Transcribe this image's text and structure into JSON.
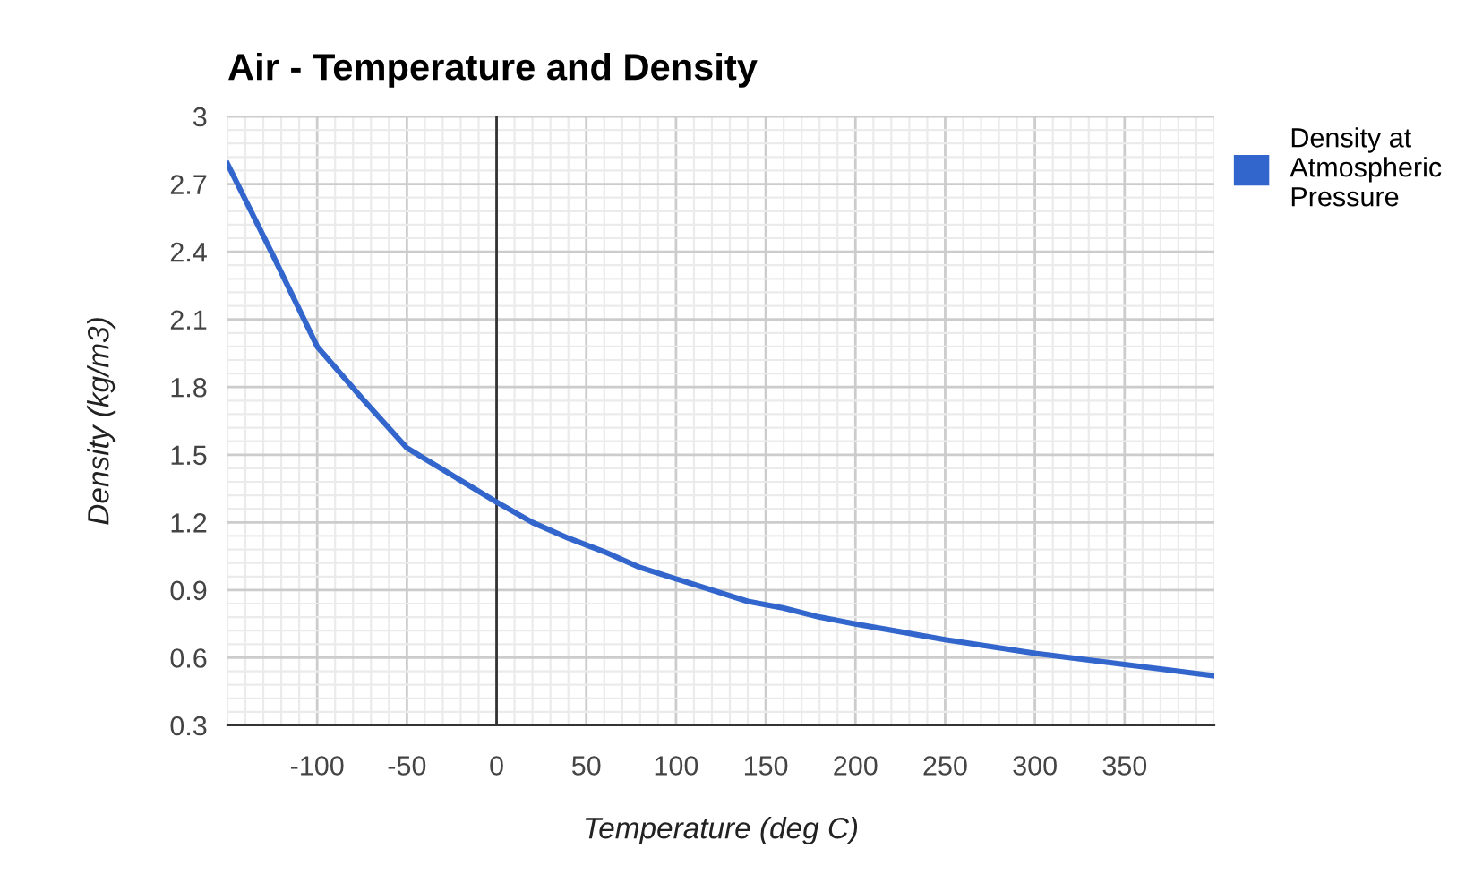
{
  "chart_data": {
    "type": "line",
    "title": "Air - Temperature and Density",
    "xlabel": "Temperature (deg C)",
    "ylabel": "Density (kg/m3)",
    "series": [
      {
        "name": "Density at Atmospheric Pressure",
        "color": "#3366cc",
        "x": [
          -150,
          -125,
          -100,
          -75,
          -50,
          -25,
          0,
          20,
          40,
          60,
          80,
          100,
          120,
          140,
          160,
          180,
          200,
          250,
          300,
          350,
          400
        ],
        "values": [
          2.79,
          2.39,
          1.98,
          1.75,
          1.53,
          1.41,
          1.29,
          1.2,
          1.13,
          1.07,
          1.0,
          0.95,
          0.9,
          0.85,
          0.82,
          0.78,
          0.75,
          0.68,
          0.62,
          0.57,
          0.52
        ]
      }
    ],
    "xlim": [
      -150,
      400
    ],
    "xticks": [
      -100,
      -50,
      0,
      50,
      100,
      150,
      200,
      250,
      300,
      350
    ],
    "ylim": [
      0.3,
      3
    ],
    "yticks": [
      0.3,
      0.6,
      0.9,
      1.2,
      1.5,
      1.8,
      2.1,
      2.4,
      2.7,
      3
    ],
    "ref_lines": [
      {
        "axis": "x",
        "value": 0,
        "color": "#333333"
      }
    ],
    "grid": true,
    "legend": "right",
    "marker": "none",
    "line_style": "solid"
  }
}
